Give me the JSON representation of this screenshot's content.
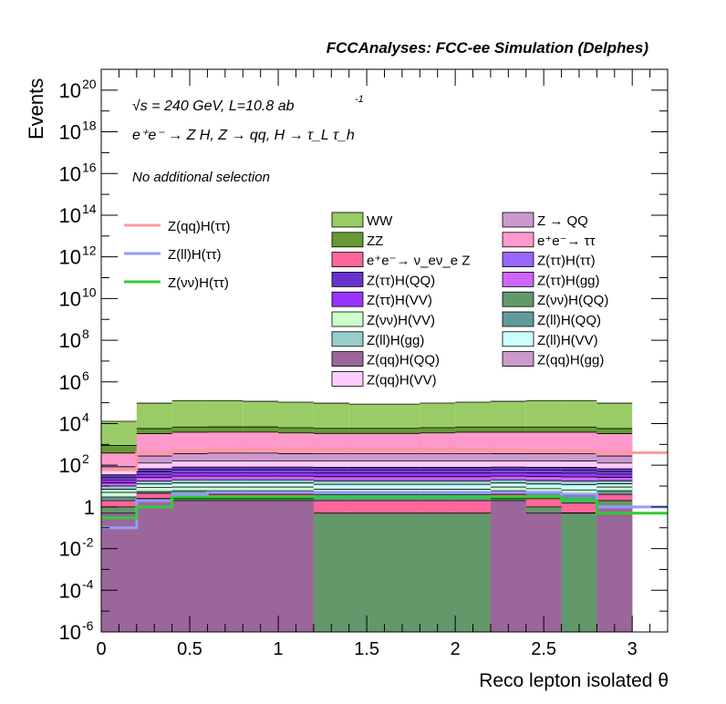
{
  "chart_data": {
    "type": "area",
    "title": "FCCAnalyses: FCC-ee Simulation (Delphes)",
    "xlabel": "Reco lepton isolated θ",
    "ylabel": "Events",
    "y_scale": "log",
    "xlim": [
      0,
      3.2
    ],
    "ylim": [
      1e-06,
      1e+21
    ],
    "x_ticks": [
      "0",
      "0.5",
      "1",
      "1.5",
      "2",
      "2.5",
      "3"
    ],
    "y_ticks": [
      {
        "base": "10",
        "exp": "-6"
      },
      {
        "base": "10",
        "exp": "-4"
      },
      {
        "base": "10",
        "exp": "-2"
      },
      {
        "base": "1",
        "exp": ""
      },
      {
        "base": "10",
        "exp": "2"
      },
      {
        "base": "10",
        "exp": "4"
      },
      {
        "base": "10",
        "exp": "6"
      },
      {
        "base": "10",
        "exp": "8"
      },
      {
        "base": "10",
        "exp": "10"
      },
      {
        "base": "10",
        "exp": "12"
      },
      {
        "base": "10",
        "exp": "14"
      },
      {
        "base": "10",
        "exp": "16"
      },
      {
        "base": "10",
        "exp": "18"
      },
      {
        "base": "10",
        "exp": "20"
      }
    ],
    "annotations": {
      "energy": "√s = 240 GeV, L=10.8 ab",
      "energy_sup": "-1",
      "process": "e⁺e⁻ → Z H, Z → qq, H → τ_L τ_h",
      "selection": "No additional selection"
    },
    "bin_edges": [
      0,
      0.2,
      0.4,
      0.6,
      0.8,
      1.0,
      1.2,
      1.4,
      1.6,
      1.8,
      2.0,
      2.2,
      2.4,
      2.6,
      2.8,
      3.0
    ],
    "stack_order": "bottom-to-top",
    "stack": [
      {
        "name": "Z(qq)H(QQ)",
        "color": "#9b679b",
        "values": [
          0.5,
          2,
          2,
          2,
          2,
          2,
          1e-06,
          1e-06,
          1e-06,
          1e-06,
          1e-06,
          2,
          0.5,
          1e-06,
          1,
          1e-06
        ]
      },
      {
        "name": "Z(νν)H(QQ)",
        "color": "#63986a",
        "values": [
          0.5,
          0.5,
          0.5,
          0.5,
          0.5,
          0.5,
          0.5,
          0.5,
          0.5,
          0.5,
          0.5,
          0.5,
          0.5,
          0.5,
          1,
          1e-06
        ]
      },
      {
        "name": "Z → QQ",
        "color": "#cc99cc",
        "values": [
          1e-06,
          1e-06,
          1e-06,
          1e-06,
          1e-06,
          1e-06,
          1e-06,
          1e-06,
          1e-06,
          1e-06,
          1e-06,
          1e-06,
          1e-06,
          0.02,
          1e-06,
          1e-06
        ]
      },
      {
        "name": "e⁺e⁻→ ν_eν_e Z",
        "color": "#ff6699",
        "values": [
          1,
          2,
          1.5,
          1.5,
          1.5,
          1.5,
          1.5,
          1.5,
          1.5,
          1.5,
          1.5,
          1.5,
          1.5,
          1,
          2,
          1e-06
        ]
      },
      {
        "name": "Z(ll)H(QQ)",
        "color": "#5f9b9b",
        "values": [
          1,
          1,
          2,
          2,
          2,
          2,
          2,
          2,
          2,
          2,
          2,
          2,
          2,
          2,
          2,
          1e-06
        ]
      },
      {
        "name": "Z(νν)H(VV)",
        "color": "#ccffcc",
        "values": [
          2,
          3,
          3,
          3,
          3,
          3,
          3,
          3,
          3,
          3,
          3,
          3,
          3,
          3,
          3,
          1e-06
        ]
      },
      {
        "name": "Z(ll)H(VV)",
        "color": "#ccffff",
        "values": [
          2,
          4,
          5,
          5,
          5,
          5,
          5,
          5,
          5,
          5,
          5,
          5,
          5,
          5,
          4,
          1e-06
        ]
      },
      {
        "name": "Z(ll)H(gg)",
        "color": "#99cccc",
        "values": [
          3,
          5,
          6,
          6,
          6,
          6,
          6,
          6,
          6,
          6,
          6,
          6,
          6,
          6,
          5,
          1e-06
        ]
      },
      {
        "name": "Z(ττ)H(gg)",
        "color": "#cc66ff",
        "values": [
          4,
          8,
          10,
          10,
          10,
          10,
          10,
          10,
          10,
          10,
          10,
          10,
          10,
          10,
          8,
          1e-06
        ]
      },
      {
        "name": "Z(ττ)H(VV)",
        "color": "#9933ff",
        "values": [
          6,
          12,
          15,
          15,
          15,
          15,
          15,
          15,
          15,
          15,
          15,
          15,
          15,
          15,
          12,
          1e-06
        ]
      },
      {
        "name": "Z(ττ)H(ττ)",
        "color": "#9966ff",
        "values": [
          5,
          10,
          12,
          12,
          12,
          12,
          12,
          12,
          12,
          12,
          12,
          12,
          12,
          12,
          10,
          1e-06
        ]
      },
      {
        "name": "Z(ττ)H(QQ)",
        "color": "#6633cc",
        "values": [
          10,
          20,
          25,
          25,
          25,
          25,
          25,
          25,
          25,
          25,
          25,
          25,
          25,
          25,
          20,
          1e-06
        ]
      },
      {
        "name": "Z(qq)H(VV)",
        "color": "#ffccff",
        "values": [
          20,
          60,
          80,
          80,
          80,
          80,
          80,
          80,
          80,
          80,
          80,
          80,
          80,
          80,
          60,
          1e-06
        ]
      },
      {
        "name": "Z(qq)H(gg)",
        "color": "#cc99cc",
        "values": [
          30,
          150,
          200,
          220,
          220,
          200,
          200,
          200,
          200,
          200,
          200,
          200,
          200,
          200,
          150,
          1e-06
        ]
      },
      {
        "name": "e⁺e⁻→ ττ",
        "color": "#ff99cc",
        "values": [
          300,
          3000,
          3500,
          3500,
          3500,
          3200,
          3000,
          3000,
          3000,
          3200,
          3500,
          3500,
          3500,
          3500,
          3000,
          1e-06
        ]
      },
      {
        "name": "ZZ",
        "color": "#669933",
        "values": [
          500,
          2500,
          3000,
          3000,
          3000,
          2800,
          2500,
          2500,
          2500,
          2800,
          3000,
          3000,
          3000,
          3000,
          2500,
          1e-06
        ]
      },
      {
        "name": "WW",
        "color": "#99cc66",
        "values": [
          12000,
          90000,
          120000,
          120000,
          110000,
          100000,
          90000,
          80000,
          80000,
          90000,
          100000,
          110000,
          120000,
          120000,
          90000,
          1e-06
        ]
      }
    ],
    "signals": [
      {
        "name": "Z(qq)H(ττ)",
        "color": "#ff9999",
        "values": [
          60,
          400,
          500,
          550,
          600,
          600,
          600,
          600,
          600,
          600,
          600,
          550,
          500,
          500,
          400,
          1e-06
        ]
      },
      {
        "name": "Z(ll)H(ττ)",
        "color": "#9999ff",
        "values": [
          0.1,
          2,
          4,
          5,
          5,
          5,
          5,
          5,
          5,
          5,
          5,
          5,
          5,
          4,
          1,
          1e-06
        ]
      },
      {
        "name": "Z(νν)H(ττ)",
        "color": "#33cc33",
        "values": [
          0.3,
          1,
          3,
          3,
          3,
          3,
          3,
          3,
          3,
          3,
          3,
          3,
          3,
          2,
          0.5,
          1e-06
        ]
      }
    ],
    "legend_columns": [
      [
        "WW",
        "ZZ",
        "e⁺e⁻→ ν_eν_e Z",
        "Z(ττ)H(QQ)",
        "Z(ττ)H(VV)",
        "Z(νν)H(VV)",
        "Z(ll)H(gg)",
        "Z(qq)H(QQ)",
        "Z(qq)H(VV)"
      ],
      [
        "Z → QQ",
        "e⁺e⁻→ ττ",
        "Z(ττ)H(ττ)",
        "Z(ττ)H(gg)",
        "Z(νν)H(QQ)",
        "Z(ll)H(QQ)",
        "Z(ll)H(VV)",
        "Z(qq)H(gg)"
      ]
    ],
    "legend_placement": "upper-center",
    "signal_legend_placement": "left"
  }
}
